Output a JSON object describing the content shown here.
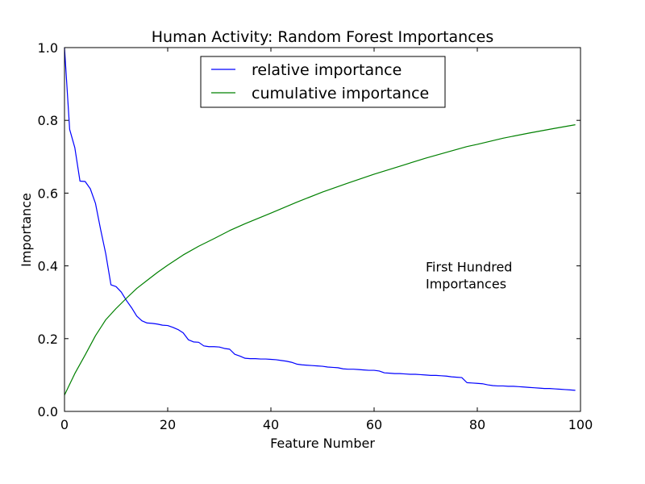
{
  "chart_data": {
    "type": "line",
    "title": "Human Activity: Random Forest Importances",
    "xlabel": "Feature Number",
    "ylabel": "Importance",
    "xlim": [
      0,
      100
    ],
    "ylim": [
      0,
      1
    ],
    "x_ticks": [
      0,
      20,
      40,
      60,
      80,
      100
    ],
    "y_ticks": [
      0.0,
      0.2,
      0.4,
      0.6,
      0.8,
      1.0
    ],
    "grid": false,
    "legend_position": "top-center",
    "annotation": {
      "lines": [
        "First Hundred",
        "Importances"
      ],
      "x": 70,
      "y": 0.38
    },
    "series": [
      {
        "name": "relative importance",
        "color": "#0000ff",
        "x": [
          0,
          1,
          2,
          3,
          4,
          5,
          6,
          7,
          8,
          9,
          10,
          11,
          12,
          13,
          14,
          15,
          16,
          17,
          18,
          19,
          20,
          21,
          22,
          23,
          24,
          25,
          26,
          27,
          28,
          29,
          30,
          31,
          32,
          33,
          34,
          35,
          36,
          37,
          38,
          39,
          40,
          41,
          42,
          43,
          44,
          45,
          46,
          47,
          48,
          49,
          50,
          51,
          52,
          53,
          54,
          55,
          56,
          57,
          58,
          59,
          60,
          61,
          62,
          63,
          64,
          65,
          66,
          67,
          68,
          69,
          70,
          71,
          72,
          73,
          74,
          75,
          76,
          77,
          78,
          79,
          80,
          81,
          82,
          83,
          84,
          85,
          86,
          87,
          88,
          89,
          90,
          91,
          92,
          93,
          94,
          95,
          96,
          97,
          98,
          99
        ],
        "y": [
          1.0,
          0.775,
          0.725,
          0.633,
          0.632,
          0.612,
          0.572,
          0.5,
          0.433,
          0.348,
          0.343,
          0.328,
          0.305,
          0.285,
          0.262,
          0.249,
          0.243,
          0.242,
          0.24,
          0.237,
          0.236,
          0.231,
          0.225,
          0.216,
          0.197,
          0.191,
          0.19,
          0.18,
          0.178,
          0.178,
          0.177,
          0.173,
          0.171,
          0.157,
          0.152,
          0.146,
          0.145,
          0.145,
          0.144,
          0.144,
          0.143,
          0.142,
          0.14,
          0.138,
          0.135,
          0.13,
          0.128,
          0.127,
          0.126,
          0.125,
          0.124,
          0.122,
          0.121,
          0.12,
          0.117,
          0.116,
          0.116,
          0.115,
          0.114,
          0.113,
          0.113,
          0.111,
          0.106,
          0.105,
          0.104,
          0.104,
          0.103,
          0.102,
          0.102,
          0.101,
          0.1,
          0.099,
          0.099,
          0.098,
          0.097,
          0.095,
          0.094,
          0.093,
          0.079,
          0.078,
          0.077,
          0.076,
          0.073,
          0.071,
          0.07,
          0.07,
          0.069,
          0.069,
          0.068,
          0.067,
          0.066,
          0.065,
          0.064,
          0.063,
          0.063,
          0.062,
          0.061,
          0.06,
          0.059,
          0.058
        ]
      },
      {
        "name": "cumulative importance",
        "color": "#008000",
        "x": [
          0,
          2,
          4,
          6,
          8,
          10,
          12,
          14,
          16,
          18,
          20,
          23,
          26,
          29,
          32,
          35,
          40,
          45,
          50,
          55,
          60,
          65,
          70,
          75,
          78,
          80,
          85,
          90,
          95,
          99
        ],
        "y": [
          0.045,
          0.104,
          0.155,
          0.208,
          0.252,
          0.283,
          0.311,
          0.338,
          0.36,
          0.382,
          0.402,
          0.43,
          0.454,
          0.475,
          0.497,
          0.516,
          0.545,
          0.575,
          0.603,
          0.628,
          0.652,
          0.674,
          0.696,
          0.716,
          0.728,
          0.734,
          0.751,
          0.765,
          0.778,
          0.788
        ]
      }
    ]
  }
}
